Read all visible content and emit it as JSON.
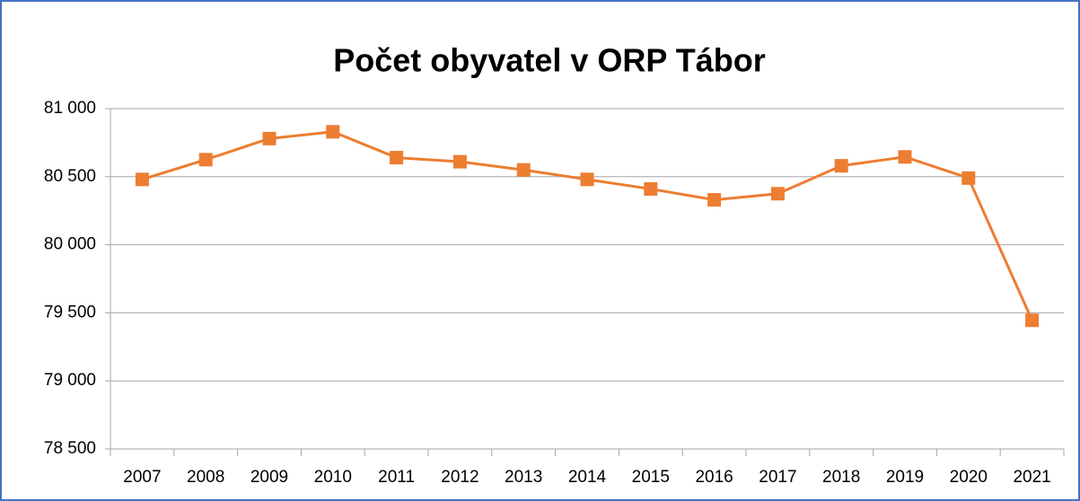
{
  "chart_data": {
    "type": "line",
    "title": "Počet obyvatel v ORP Tábor",
    "categories": [
      "2007",
      "2008",
      "2009",
      "2010",
      "2011",
      "2012",
      "2013",
      "2014",
      "2015",
      "2016",
      "2017",
      "2018",
      "2019",
      "2020",
      "2021"
    ],
    "values": [
      80480,
      80625,
      80780,
      80830,
      80640,
      80610,
      80550,
      80480,
      80410,
      80330,
      80375,
      80580,
      80645,
      80490,
      79445
    ],
    "color": "#ed7d31",
    "ylim": [
      78500,
      81000
    ],
    "yticks": [
      {
        "value": 78500,
        "label": "78 500"
      },
      {
        "value": 79000,
        "label": "79 000"
      },
      {
        "value": 79500,
        "label": "79 500"
      },
      {
        "value": 80000,
        "label": "80 000"
      },
      {
        "value": 80500,
        "label": "80 500"
      },
      {
        "value": 81000,
        "label": "81 000"
      }
    ],
    "grid": true
  }
}
